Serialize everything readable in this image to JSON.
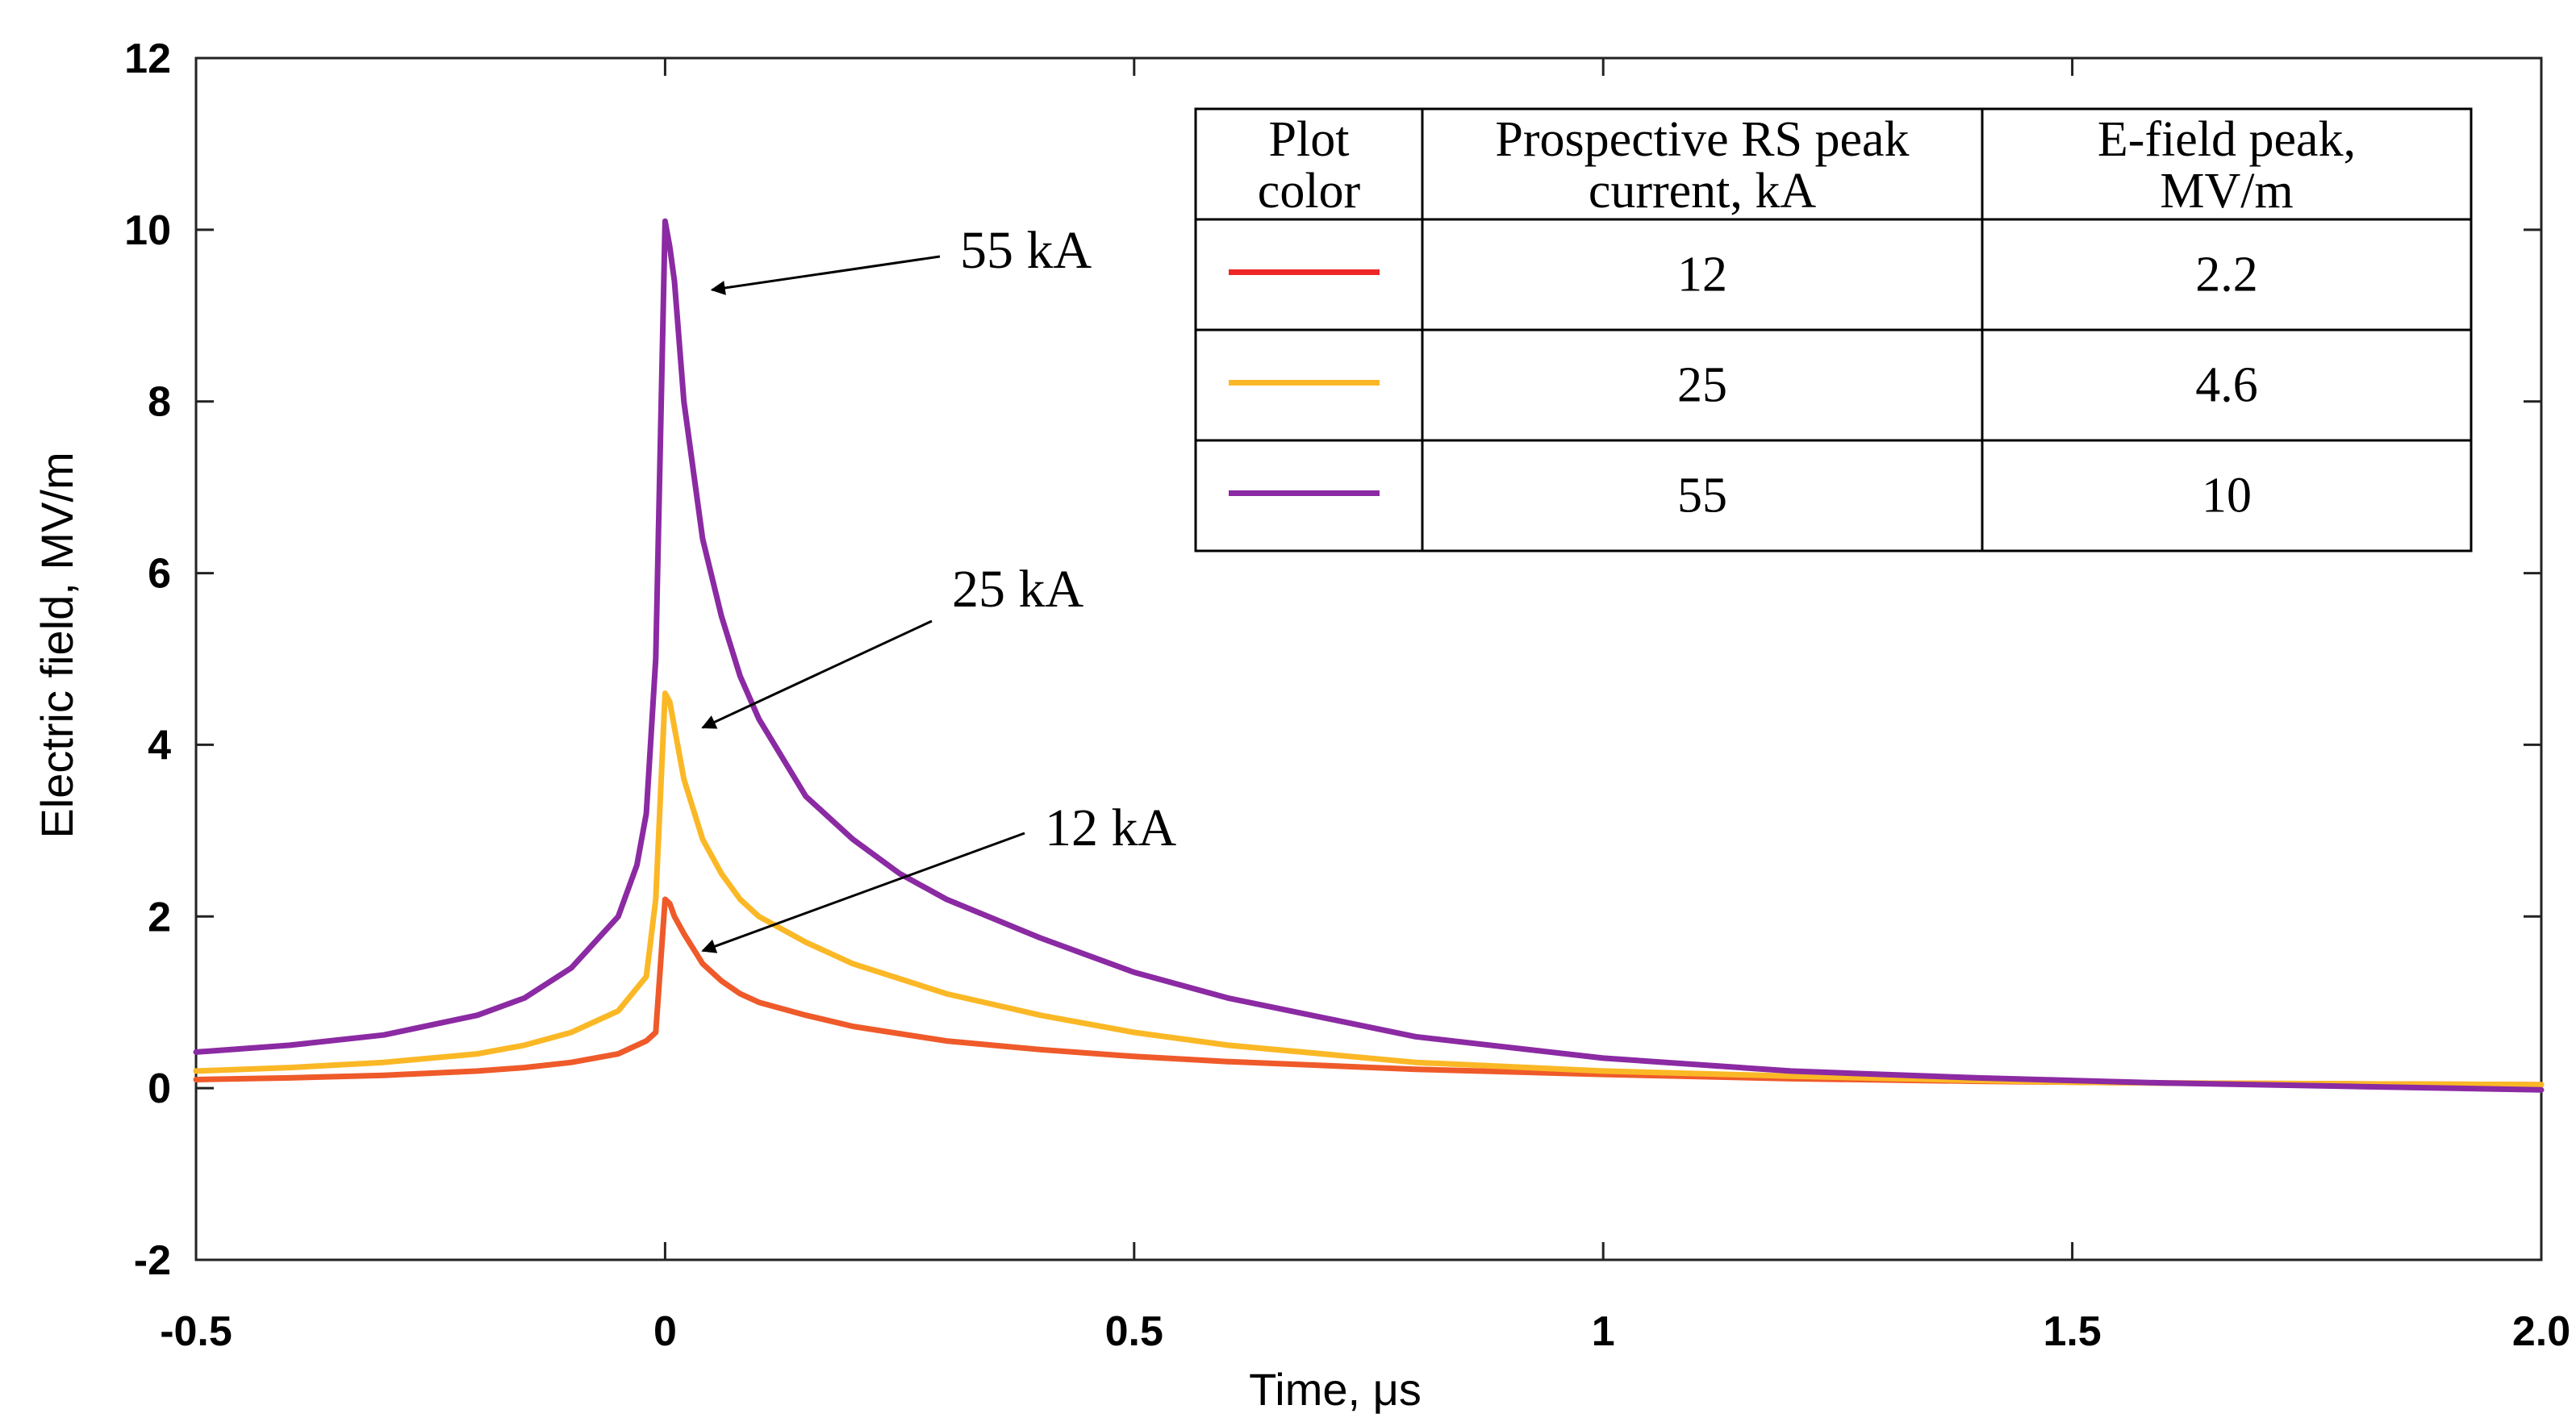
{
  "chart_data": {
    "type": "line",
    "xlabel": "Time, μs",
    "ylabel": "Electric field, MV/m",
    "xlim": [
      -0.5,
      2.0
    ],
    "ylim": [
      -2,
      12
    ],
    "x_ticks": [
      "-0.5",
      "0",
      "0.5",
      "1",
      "1.5",
      "2.0"
    ],
    "x_tick_values": [
      -0.5,
      0,
      0.5,
      1,
      1.5,
      2.0
    ],
    "y_ticks": [
      "-2",
      "0",
      "2",
      "4",
      "6",
      "8",
      "10",
      "12"
    ],
    "y_tick_values": [
      -2,
      0,
      2,
      4,
      6,
      8,
      10,
      12
    ],
    "grid": false,
    "series": [
      {
        "name": "12 kA",
        "color": "#ef5a2a",
        "x": [
          -0.5,
          -0.4,
          -0.3,
          -0.2,
          -0.15,
          -0.1,
          -0.05,
          -0.02,
          -0.01,
          0,
          0.005,
          0.01,
          0.02,
          0.04,
          0.06,
          0.08,
          0.1,
          0.15,
          0.2,
          0.3,
          0.4,
          0.5,
          0.6,
          0.8,
          1.0,
          1.2,
          1.4,
          1.5,
          1.6,
          1.8,
          2.0
        ],
        "y": [
          0.1,
          0.12,
          0.15,
          0.2,
          0.24,
          0.3,
          0.4,
          0.55,
          0.65,
          2.2,
          2.15,
          2.0,
          1.8,
          1.45,
          1.25,
          1.1,
          1.0,
          0.85,
          0.72,
          0.55,
          0.45,
          0.37,
          0.31,
          0.22,
          0.16,
          0.11,
          0.08,
          0.07,
          0.06,
          0.05,
          0.04
        ]
      },
      {
        "name": "25 kA",
        "color": "#fbb826",
        "x": [
          -0.5,
          -0.4,
          -0.3,
          -0.2,
          -0.15,
          -0.1,
          -0.05,
          -0.02,
          -0.01,
          0,
          0.005,
          0.01,
          0.02,
          0.04,
          0.06,
          0.08,
          0.1,
          0.15,
          0.2,
          0.3,
          0.4,
          0.5,
          0.6,
          0.8,
          1.0,
          1.2,
          1.4,
          1.5,
          1.6,
          1.8,
          2.0
        ],
        "y": [
          0.2,
          0.24,
          0.3,
          0.4,
          0.5,
          0.65,
          0.9,
          1.3,
          2.2,
          4.6,
          4.5,
          4.2,
          3.6,
          2.9,
          2.5,
          2.2,
          2.0,
          1.7,
          1.45,
          1.1,
          0.85,
          0.65,
          0.5,
          0.3,
          0.2,
          0.14,
          0.09,
          0.07,
          0.06,
          0.05,
          0.04
        ]
      },
      {
        "name": "55 kA",
        "color": "#8b2aa3",
        "x": [
          -0.5,
          -0.4,
          -0.3,
          -0.2,
          -0.15,
          -0.1,
          -0.05,
          -0.03,
          -0.02,
          -0.01,
          0,
          0.005,
          0.01,
          0.02,
          0.03,
          0.04,
          0.06,
          0.08,
          0.1,
          0.15,
          0.2,
          0.25,
          0.3,
          0.4,
          0.5,
          0.6,
          0.8,
          1.0,
          1.2,
          1.4,
          1.5,
          1.6,
          1.8,
          2.0
        ],
        "y": [
          0.42,
          0.5,
          0.62,
          0.85,
          1.05,
          1.4,
          2.0,
          2.6,
          3.2,
          5.0,
          10.1,
          9.8,
          9.4,
          8.0,
          7.2,
          6.4,
          5.5,
          4.8,
          4.3,
          3.4,
          2.9,
          2.5,
          2.2,
          1.75,
          1.35,
          1.05,
          0.6,
          0.35,
          0.2,
          0.12,
          0.09,
          0.06,
          0.02,
          -0.02
        ]
      }
    ],
    "annotations": [
      {
        "text": "55 kA",
        "point_x": 0.05,
        "point_y": 9.3
      },
      {
        "text": "25 kA",
        "point_x": 0.04,
        "point_y": 4.2
      },
      {
        "text": "12 kA",
        "point_x": 0.04,
        "point_y": 1.6
      }
    ],
    "legend_table": {
      "headers": [
        "Plot\ncolor",
        "Prospective RS peak\ncurrent, kA",
        "E-field peak,\nMV/m"
      ],
      "rows": [
        {
          "color": "#ef2626",
          "current": "12",
          "peak": "2.2"
        },
        {
          "color": "#fbb826",
          "current": "25",
          "peak": "4.6"
        },
        {
          "color": "#8b2aa3",
          "current": "55",
          "peak": "10"
        }
      ]
    }
  }
}
